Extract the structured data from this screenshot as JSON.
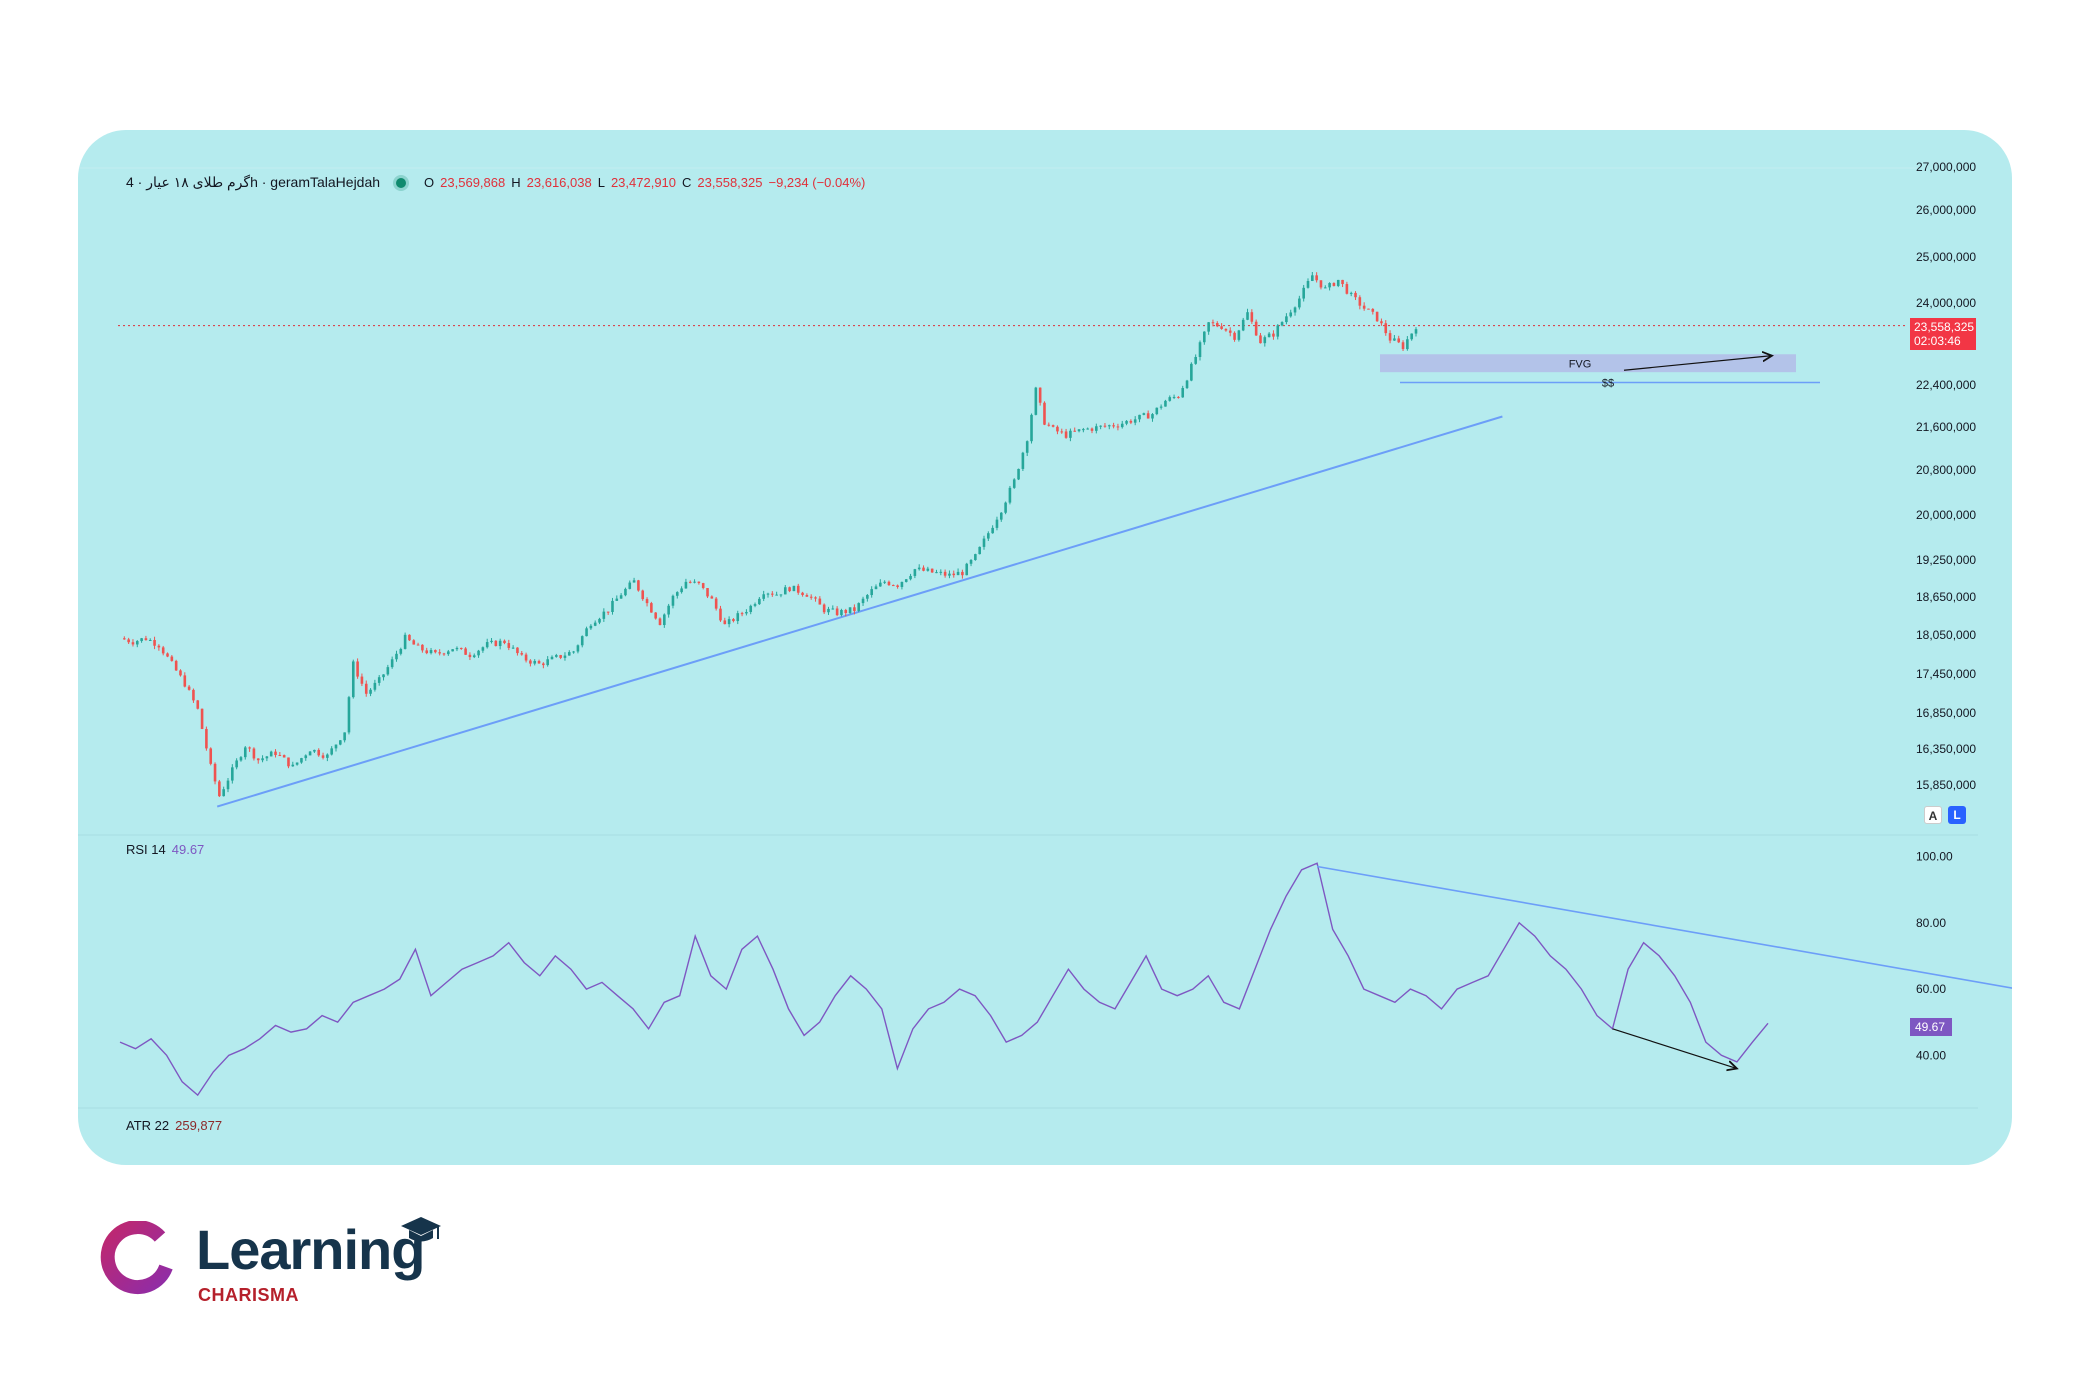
{
  "legend": {
    "symbol": "گرم طلای ۱۸ عیار · 4h · geramTalaHejdah",
    "o_label": "O",
    "o": "23,569,868",
    "h_label": "H",
    "h": "23,616,038",
    "l_label": "L",
    "l": "23,472,910",
    "c_label": "C",
    "c": "23,558,325",
    "change": "−9,234 (−0.04%)"
  },
  "price_tag": {
    "price": "23,558,325",
    "countdown": "02:03:46"
  },
  "rsi": {
    "label": "RSI 14",
    "value": "49.67"
  },
  "atr": {
    "label": "ATR 22",
    "value": "259,877"
  },
  "annotations": {
    "fvg": "FVG",
    "ss": "$$"
  },
  "buttons": {
    "a": "A",
    "l": "L"
  },
  "logo": {
    "word": "Learning",
    "sub": "CHARISMA"
  },
  "colors": {
    "background": "#b5ebee",
    "up": "#26a69a",
    "down": "#ef5350",
    "rsi": "#7e57c2",
    "trendline": "#6c9ef8",
    "fvg_zone": "#b3bfe8",
    "price_tag": "#f23645"
  },
  "chart_data": [
    {
      "type": "candlestick",
      "timeframe": "4h",
      "price_axis_ticks": [
        "27,000,000",
        "26,000,000",
        "25,000,000",
        "24,000,000",
        "22,400,000",
        "21,600,000",
        "20,800,000",
        "20,000,000",
        "19,250,000",
        "18,650,000",
        "18,050,000",
        "17,450,000",
        "16,850,000",
        "16,350,000",
        "15,850,000"
      ],
      "close_path": [
        [
          0,
          18000000
        ],
        [
          6,
          17950000
        ],
        [
          12,
          18000000
        ],
        [
          18,
          17900000
        ],
        [
          24,
          17600000
        ],
        [
          30,
          17300000
        ],
        [
          36,
          16900000
        ],
        [
          42,
          16100000
        ],
        [
          46,
          15700000
        ],
        [
          52,
          16050000
        ],
        [
          58,
          16400000
        ],
        [
          64,
          16200000
        ],
        [
          72,
          16300000
        ],
        [
          80,
          16100000
        ],
        [
          88,
          16350000
        ],
        [
          96,
          16250000
        ],
        [
          104,
          16600000
        ],
        [
          108,
          17600000
        ],
        [
          114,
          17150000
        ],
        [
          120,
          17350000
        ],
        [
          126,
          17650000
        ],
        [
          132,
          18000000
        ],
        [
          138,
          17850000
        ],
        [
          146,
          17750000
        ],
        [
          154,
          17850000
        ],
        [
          162,
          17750000
        ],
        [
          170,
          17900000
        ],
        [
          178,
          17950000
        ],
        [
          186,
          17700000
        ],
        [
          194,
          17600000
        ],
        [
          202,
          17700000
        ],
        [
          210,
          17800000
        ],
        [
          218,
          18250000
        ],
        [
          226,
          18450000
        ],
        [
          232,
          18700000
        ],
        [
          238,
          18900000
        ],
        [
          244,
          18550000
        ],
        [
          250,
          18250000
        ],
        [
          256,
          18650000
        ],
        [
          262,
          18900000
        ],
        [
          268,
          18850000
        ],
        [
          274,
          18600000
        ],
        [
          280,
          18200000
        ],
        [
          286,
          18350000
        ],
        [
          292,
          18500000
        ],
        [
          298,
          18750000
        ],
        [
          304,
          18700000
        ],
        [
          310,
          18800000
        ],
        [
          318,
          18700000
        ],
        [
          326,
          18450000
        ],
        [
          332,
          18400000
        ],
        [
          340,
          18450000
        ],
        [
          348,
          18750000
        ],
        [
          354,
          18900000
        ],
        [
          360,
          18850000
        ],
        [
          368,
          19100000
        ],
        [
          376,
          19050000
        ],
        [
          384,
          19000000
        ],
        [
          390,
          19050000
        ],
        [
          396,
          19300000
        ],
        [
          402,
          19700000
        ],
        [
          408,
          20100000
        ],
        [
          414,
          20600000
        ],
        [
          420,
          21400000
        ],
        [
          424,
          22300000
        ],
        [
          428,
          21700000
        ],
        [
          432,
          21550000
        ],
        [
          438,
          21450000
        ],
        [
          446,
          21550000
        ],
        [
          454,
          21600000
        ],
        [
          462,
          21650000
        ],
        [
          470,
          21750000
        ],
        [
          478,
          21850000
        ],
        [
          484,
          22100000
        ],
        [
          490,
          22200000
        ],
        [
          494,
          22550000
        ],
        [
          498,
          22950000
        ],
        [
          504,
          23600000
        ],
        [
          510,
          23550000
        ],
        [
          516,
          23350000
        ],
        [
          522,
          23800000
        ],
        [
          528,
          23250000
        ],
        [
          534,
          23400000
        ],
        [
          540,
          23750000
        ],
        [
          546,
          24100000
        ],
        [
          552,
          24600000
        ],
        [
          558,
          24300000
        ],
        [
          564,
          24500000
        ],
        [
          570,
          24150000
        ],
        [
          576,
          23900000
        ],
        [
          582,
          23700000
        ],
        [
          588,
          23300000
        ],
        [
          594,
          23150000
        ],
        [
          600,
          23558325
        ]
      ],
      "trendline": {
        "from": [
          45,
          15550000
        ],
        "to": [
          640,
          21800000
        ]
      },
      "resistance_line": {
        "price": 23558325,
        "style": "dotted"
      },
      "fvg_zone": {
        "top": 23000000,
        "bottom": 22650000,
        "label": "FVG"
      },
      "ss_line": {
        "price": 22450000,
        "label": "$$"
      }
    },
    {
      "type": "line",
      "name": "RSI 14",
      "y_axis_ticks": [
        "100.00",
        "80.00",
        "60.00",
        "40.00"
      ],
      "ylim": [
        25,
        105
      ],
      "values": [
        44,
        42,
        45,
        40,
        32,
        28,
        35,
        40,
        42,
        45,
        49,
        47,
        48,
        52,
        50,
        56,
        58,
        60,
        63,
        72,
        58,
        62,
        66,
        68,
        70,
        74,
        68,
        64,
        70,
        66,
        60,
        62,
        58,
        54,
        48,
        56,
        58,
        76,
        64,
        60,
        72,
        76,
        66,
        54,
        46,
        50,
        58,
        64,
        60,
        54,
        36,
        48,
        54,
        56,
        60,
        58,
        52,
        44,
        46,
        50,
        58,
        66,
        60,
        56,
        54,
        62,
        70,
        60,
        58,
        60,
        64,
        56,
        54,
        66,
        78,
        88,
        96,
        98,
        78,
        70,
        60,
        58,
        56,
        60,
        58,
        54,
        60,
        62,
        64,
        72,
        80,
        76,
        70,
        66,
        60,
        52,
        48,
        66,
        74,
        70,
        64,
        56,
        44,
        40,
        38,
        44,
        49.67
      ],
      "trend_line": {
        "from_index": 77,
        "to_index": 122,
        "from": 97,
        "to": 59
      },
      "divergence_arrow": {
        "from_index": 96,
        "to_index": 104,
        "from": 48,
        "to": 36
      }
    }
  ]
}
